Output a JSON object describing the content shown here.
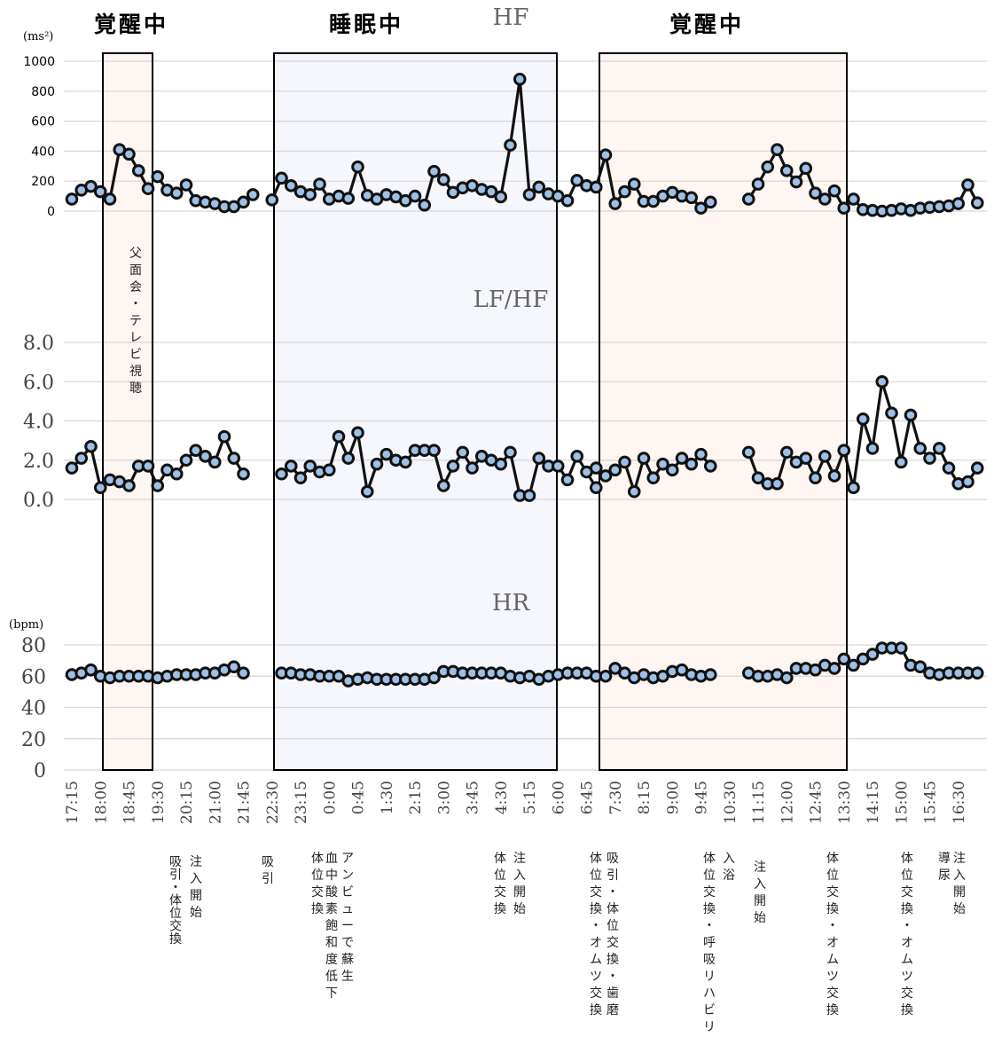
{
  "state_labels": {
    "awake_1": "覚醒中",
    "sleep": "睡眠中",
    "awake_2": "覚醒中"
  },
  "colors": {
    "awake_fill": "#fdf6f2",
    "sleep_fill": "#f5f7fc",
    "marker_fill": "#9dc0e4",
    "line": "#111111",
    "grid": "#d6d6d6"
  },
  "chart_data": [
    {
      "type": "line",
      "title": "HF",
      "unit": "(ms²)",
      "ylim": [
        0,
        1000
      ],
      "yticks": [
        "0",
        "200",
        "400",
        "600",
        "800",
        "1000"
      ],
      "grid": true,
      "segments": [
        [
          80,
          140,
          165,
          130,
          80,
          410,
          380,
          270,
          150
        ],
        [
          230,
          140,
          120,
          175,
          70,
          60,
          50,
          30,
          30,
          60,
          110
        ],
        [
          75,
          220,
          170,
          130,
          110,
          180,
          80,
          100,
          85,
          295,
          105,
          80,
          110,
          95,
          70,
          100,
          40,
          265,
          210,
          125,
          155,
          170,
          145,
          130,
          95,
          440,
          880,
          110,
          160,
          115,
          100,
          70,
          205,
          170
        ],
        [
          160,
          375,
          50,
          130,
          180,
          65,
          65,
          100,
          125,
          100,
          90,
          20,
          60
        ],
        [
          80,
          180,
          295,
          410,
          270,
          195,
          285,
          120,
          80,
          135,
          20,
          80,
          10,
          5,
          0,
          5,
          15,
          5,
          20,
          25,
          30,
          35,
          50,
          175,
          55
        ]
      ]
    },
    {
      "type": "line",
      "title": "LF/HF",
      "ylim": [
        0,
        8
      ],
      "yticks": [
        "0.0",
        "2.0",
        "4.0",
        "6.0",
        "8.0"
      ],
      "grid": true,
      "segments": [
        [
          1.6,
          2.1,
          2.7,
          0.6,
          1.0,
          0.9,
          0.7,
          1.7,
          1.7,
          0.7,
          1.5,
          1.3,
          2.0,
          2.5,
          2.2,
          1.9,
          3.2,
          2.1,
          1.3
        ],
        [
          1.3,
          1.7,
          1.1,
          1.7,
          1.4,
          1.5,
          3.2,
          2.1,
          3.4,
          0.4,
          1.8,
          2.3,
          2.0,
          1.9,
          2.5,
          2.5,
          2.5,
          0.7,
          1.7,
          2.4,
          1.6,
          2.2,
          2.0,
          1.8,
          2.4,
          0.2,
          0.2,
          2.1,
          1.7,
          1.7,
          1.0,
          2.2,
          1.4,
          0.6
        ],
        [
          1.6,
          1.2,
          1.5,
          1.9,
          0.4,
          2.1,
          1.1,
          1.8,
          1.5,
          2.1,
          1.8,
          2.3,
          1.7
        ],
        [
          2.4,
          1.1,
          0.8,
          0.8,
          2.4,
          1.9,
          2.1,
          1.1,
          2.2,
          1.2,
          2.5,
          0.6,
          4.1,
          2.6,
          6.0,
          4.4,
          1.9,
          4.3,
          2.6,
          2.1,
          2.6,
          1.6,
          0.8,
          0.9,
          1.6
        ]
      ]
    },
    {
      "type": "line",
      "title": "HR",
      "unit": "(bpm)",
      "ylim": [
        0,
        80
      ],
      "yticks": [
        "0",
        "20",
        "40",
        "60",
        "80"
      ],
      "grid": true,
      "segments": [
        [
          61,
          62,
          64,
          60,
          59,
          60,
          60,
          60,
          60,
          59,
          60,
          61,
          61,
          61,
          62,
          62,
          64,
          66,
          62
        ],
        [
          62,
          62,
          61,
          61,
          60,
          60,
          60,
          57,
          58,
          59,
          58,
          58,
          58,
          58,
          58,
          58,
          59,
          63,
          63,
          62,
          62,
          62,
          62,
          62,
          60,
          59,
          60,
          58,
          60,
          61,
          62,
          62,
          62
        ],
        [
          60,
          60,
          65,
          62,
          59,
          61,
          59,
          60,
          63,
          64,
          61,
          60,
          61
        ],
        [
          62,
          60,
          60,
          61,
          59,
          65,
          65,
          64,
          67,
          65,
          71,
          67,
          71,
          74,
          78,
          78,
          78,
          67,
          66,
          62,
          61,
          62,
          62,
          62,
          62
        ]
      ]
    }
  ],
  "x_tick_labels": [
    "17:15",
    "18:00",
    "18:45",
    "19:30",
    "20:15",
    "21:00",
    "21:45",
    "22:30",
    "23:15",
    "0:00",
    "0:45",
    "1:30",
    "2:15",
    "3:00",
    "3:45",
    "4:30",
    "5:15",
    "6:00",
    "6:45",
    "7:30",
    "8:15",
    "9:00",
    "9:45",
    "10:30",
    "11:15",
    "12:00",
    "12:45",
    "13:30",
    "14:15",
    "15:00",
    "15:45",
    "16:30"
  ],
  "annotations": {
    "visit": "父面会・テレビ視聴",
    "a1": "注入開始",
    "a2": "吸引・体位交換",
    "a3": "吸引",
    "a4": "アンビューで蘇生",
    "a5": "血中酸素飽和度低下",
    "a6": "体位交換",
    "a7": "注入開始",
    "a8": "体位交換",
    "a9": "吸引・体位交換・歯磨",
    "a10": "体位交換・オムツ交換",
    "a11": "入浴",
    "a12": "体位交換・呼吸リハビリ",
    "a13": "注入開始",
    "a14": "体位交換・オムツ交換",
    "a15": "体位交換・オムツ交換",
    "a16": "注入開始",
    "a17": "導尿"
  }
}
